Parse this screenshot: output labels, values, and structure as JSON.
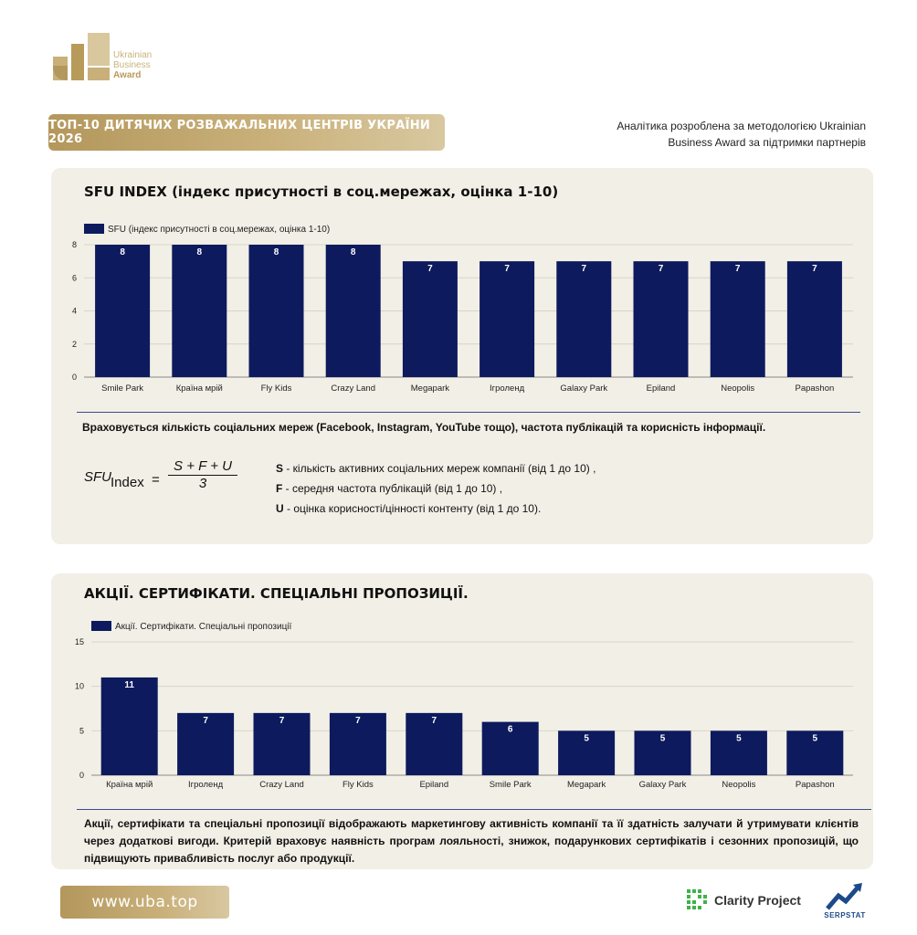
{
  "logo": {
    "line1": "Ukrainian",
    "line2": "Business",
    "line3": "Award"
  },
  "header": {
    "title": "ТОП-10 ДИТЯЧИХ РОЗВАЖАЛЬНИХ ЦЕНТРІВ УКРАЇНИ 2026",
    "note": "Аналітика розроблена за методологією Ukrainian Business Award за підтримки партнерів"
  },
  "section1": {
    "title": "SFU INDEX (індекс присутності в соц.мережах, оцінка 1-10)",
    "description": "Враховується кількість соціальних мереж (Facebook, Instagram, YouTube тощо), частота публікацій та корисність інформації.",
    "formula": {
      "lhs": "SFU",
      "sub": "Index",
      "eq": "=",
      "numerator": "S + F + U",
      "denominator": "3"
    },
    "terms": [
      {
        "key": "S",
        "text": " - кількість активних соціальних мереж компанії (від 1 до 10) ,"
      },
      {
        "key": "F",
        "text": " - середня частота публікацій (від 1 до 10) ,"
      },
      {
        "key": "U",
        "text": " - оцінка корисності/цінності контенту (від 1 до 10)."
      }
    ]
  },
  "section2": {
    "title": "АКЦІЇ. СЕРТИФІКАТИ. СПЕЦІАЛЬНІ ПРОПОЗИЦІЇ.",
    "description": "Акції, сертифікати та спеціальні пропозиції відображають маркетингову активність компанії та її здатність залучати й утримувати клієнтів через додаткові вигоди. Критерій враховує наявність програм лояльності, знижок, подарункових сертифікатів і сезонних пропозицій, що підвищують привабливість послуг або продукції."
  },
  "chart_data": [
    {
      "type": "bar",
      "title": "SFU INDEX (індекс присутності в соц.мережах, оцінка 1-10)",
      "categories": [
        "Smile Park",
        "Країна мрій",
        "Fly Kids",
        "Crazy Land",
        "Megapark",
        "Ігроленд",
        "Galaxy Park",
        "Epiland",
        "Neopolis",
        "Papashon"
      ],
      "series": [
        {
          "name": "SFU (індекс присутності в соц.мережах, оцінка 1-10)",
          "values": [
            8,
            8,
            8,
            8,
            7,
            7,
            7,
            7,
            7,
            7
          ]
        }
      ],
      "yticks": [
        0,
        2,
        4,
        6,
        8
      ],
      "ylim": [
        0,
        8
      ],
      "grid": true,
      "legend": "top-left",
      "data_labels": true,
      "color": "#0d1a5e"
    },
    {
      "type": "bar",
      "title": "АКЦІЇ. СЕРТИФІКАТИ. СПЕЦІАЛЬНІ ПРОПОЗИЦІЇ.",
      "categories": [
        "Країна мрій",
        "Ігроленд",
        "Crazy Land",
        "Fly Kids",
        "Epiland",
        "Smile Park",
        "Megapark",
        "Galaxy Park",
        "Neopolis",
        "Papashon"
      ],
      "series": [
        {
          "name": "Акції. Сертифікати. Спеціальні пропозиції",
          "values": [
            11,
            7,
            7,
            7,
            7,
            6,
            5,
            5,
            5,
            5
          ]
        }
      ],
      "yticks": [
        0,
        5,
        10,
        15
      ],
      "ylim": [
        0,
        15
      ],
      "grid": true,
      "legend": "top-left",
      "data_labels": true,
      "color": "#0d1a5e"
    }
  ],
  "footer": {
    "url": "www.uba.top",
    "partner1": "Clarity Project",
    "partner2": "SERPSTAT"
  }
}
